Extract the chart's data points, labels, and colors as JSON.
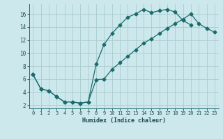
{
  "xlabel": "Humidex (Indice chaleur)",
  "bg_color": "#cce8ed",
  "grid_color": "#aacccc",
  "line_color": "#1a6b6b",
  "xlim": [
    -0.5,
    23.5
  ],
  "ylim": [
    1.5,
    17.5
  ],
  "xticks": [
    0,
    1,
    2,
    3,
    4,
    5,
    6,
    7,
    8,
    9,
    10,
    11,
    12,
    13,
    14,
    15,
    16,
    17,
    18,
    19,
    20,
    21,
    22,
    23
  ],
  "yticks": [
    2,
    4,
    6,
    8,
    10,
    12,
    14,
    16
  ],
  "upper_x": [
    0,
    1,
    2,
    3,
    4,
    5,
    6,
    7,
    8,
    9,
    10,
    11,
    12,
    13,
    14,
    15,
    16,
    17,
    18,
    19,
    20
  ],
  "upper_y": [
    6.7,
    4.5,
    4.2,
    3.3,
    2.5,
    2.5,
    2.3,
    2.5,
    8.3,
    11.3,
    13.0,
    14.3,
    15.5,
    16.0,
    16.7,
    16.2,
    16.5,
    16.7,
    16.3,
    15.0,
    14.3
  ],
  "lower_x": [
    0,
    1,
    2,
    3,
    4,
    5,
    6,
    7,
    8,
    9,
    10,
    11,
    12,
    13,
    14,
    15,
    16,
    17,
    18,
    19,
    20,
    21,
    22,
    23
  ],
  "lower_y": [
    6.7,
    4.5,
    4.2,
    3.3,
    2.5,
    2.5,
    2.3,
    2.5,
    5.9,
    6.0,
    7.5,
    8.5,
    9.5,
    10.5,
    11.5,
    12.2,
    13.0,
    13.8,
    14.5,
    15.2,
    16.0,
    14.5,
    13.8,
    13.2
  ]
}
